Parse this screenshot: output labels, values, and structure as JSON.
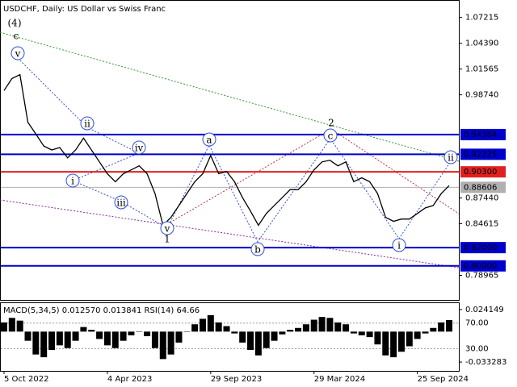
{
  "chart_data": [
    {
      "type": "line",
      "title": "USDCHF, Daily:  US Dollar vs Swiss Franc",
      "color": "#000000",
      "values": [
        0.9921,
        1.0052,
        1.0095,
        0.9574,
        0.9444,
        0.9313,
        0.927,
        0.9296,
        0.9183,
        0.927,
        0.94,
        0.927,
        0.9139,
        0.9009,
        0.8922,
        0.9009,
        0.9052,
        0.9096,
        0.9009,
        0.8792,
        0.8444,
        0.8531,
        0.8661,
        0.8792,
        0.8922,
        0.9009,
        0.9209,
        0.9009,
        0.9035,
        0.8922,
        0.8748,
        0.8601,
        0.8444,
        0.8574,
        0.8661,
        0.8748,
        0.8835,
        0.8835,
        0.8922,
        0.9052,
        0.9139,
        0.9157,
        0.9096,
        0.9139,
        0.8922,
        0.8965,
        0.8922,
        0.8792,
        0.8531,
        0.8488,
        0.8513,
        0.8513,
        0.8574,
        0.8635,
        0.8661,
        0.8792,
        0.8879
      ],
      "xlim": [
        0,
        56
      ],
      "xticks": [
        {
          "value": 0,
          "label": "5 Oct 2022"
        },
        {
          "value": 13,
          "label": "4 Apr 2023"
        },
        {
          "value": 26,
          "label": "29 Sep 2023"
        },
        {
          "value": 39,
          "label": "29 Mar 2024"
        },
        {
          "value": 52,
          "label": "25 Sep 2024"
        }
      ],
      "ylim": [
        0.7627,
        1.0895
      ],
      "yticks": [
        {
          "value": 1.07215,
          "label": "1.07215"
        },
        {
          "value": 1.0439,
          "label": "1.04390"
        },
        {
          "value": 1.01565,
          "label": "1.01565"
        },
        {
          "value": 0.9874,
          "label": "0.98740"
        },
        {
          "value": 0.8744,
          "label": "0.87440"
        },
        {
          "value": 0.84615,
          "label": "0.84615"
        },
        {
          "value": 0.78965,
          "label": "0.78965"
        }
      ],
      "levels": [
        {
          "value": 0.94384,
          "label": "0.94384",
          "color": "#0000cc"
        },
        {
          "value": 0.92225,
          "label": "0.92225",
          "color": "#0000cc"
        },
        {
          "value": 0.903,
          "label": "0.90300",
          "color": "#e02020"
        },
        {
          "value": 0.88606,
          "label": "0.88606",
          "color": "#b0b0b0"
        },
        {
          "value": 0.82,
          "label": "0.82000",
          "color": "#0000cc"
        },
        {
          "value": 0.8,
          "label": "0.80000",
          "color": "#0000cc"
        }
      ],
      "annotations": [
        "(4)",
        "c",
        "v",
        "ii",
        "iv",
        "i",
        "iii",
        "a",
        "v",
        "1",
        "b",
        "2",
        "c",
        "i",
        "ii"
      ]
    },
    {
      "type": "bar",
      "title": "MACD(5,34,5) 0.012570 0.013841 RSI(14) 64.66",
      "color": "#000000",
      "values": [
        0.01,
        0.015,
        0.012,
        -0.01,
        -0.025,
        -0.028,
        -0.02,
        -0.015,
        -0.018,
        -0.01,
        0.005,
        0.002,
        -0.008,
        -0.015,
        -0.018,
        -0.01,
        -0.004,
        0,
        -0.005,
        -0.018,
        -0.03,
        -0.025,
        -0.012,
        0,
        0.008,
        0.014,
        0.018,
        0.01,
        0.006,
        -0.002,
        -0.012,
        -0.02,
        -0.026,
        -0.018,
        -0.01,
        -0.003,
        0.002,
        0.004,
        0.008,
        0.013,
        0.016,
        0.015,
        0.01,
        0.008,
        -0.002,
        -0.004,
        -0.006,
        -0.014,
        -0.026,
        -0.028,
        -0.022,
        -0.016,
        -0.008,
        -0.002,
        0.004,
        0.01,
        0.0126
      ],
      "ylim": [
        -0.0429,
        0.0311
      ],
      "yticks": [
        0.024149,
        -0.033283
      ],
      "y2lim": [
        -5,
        101.25
      ],
      "y2ticks": [
        {
          "value": 70,
          "label": "70.00"
        },
        {
          "value": 30,
          "label": "30.00"
        }
      ]
    }
  ]
}
